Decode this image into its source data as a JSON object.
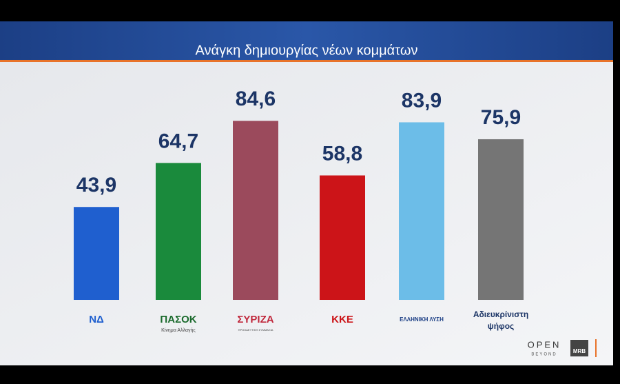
{
  "chart_data": {
    "type": "bar",
    "title": "Ανάγκη δημιουργίας νέων κομμάτων",
    "categories": [
      "ΝΔ",
      "ΠΑΣΟΚ",
      "ΣΥΡΙΖΑ",
      "ΚΚΕ",
      "ΕΛΛΗΝΙΚΗ ΛΥΣΗ",
      "Αδιευκρίνιστη ψήφος"
    ],
    "sublabels": [
      null,
      "Κίνημα Αλλαγής",
      "ΠΡΟΟΔΕΥΤΙΚΗ ΣΥΜΜΑΧΙΑ",
      null,
      null,
      null
    ],
    "values": [
      43.9,
      64.7,
      84.6,
      58.8,
      83.9,
      75.9
    ],
    "value_labels": [
      "43,9",
      "64,7",
      "84,6",
      "58,8",
      "83,9",
      "75,9"
    ],
    "colors": [
      "#1f5fcf",
      "#1a8a3c",
      "#9b4a5c",
      "#cc1418",
      "#6cbde8",
      "#757575"
    ]
  },
  "branding": {
    "channel": "OPEN",
    "channel_sub": "BEYOND",
    "pollster": "MRB"
  }
}
